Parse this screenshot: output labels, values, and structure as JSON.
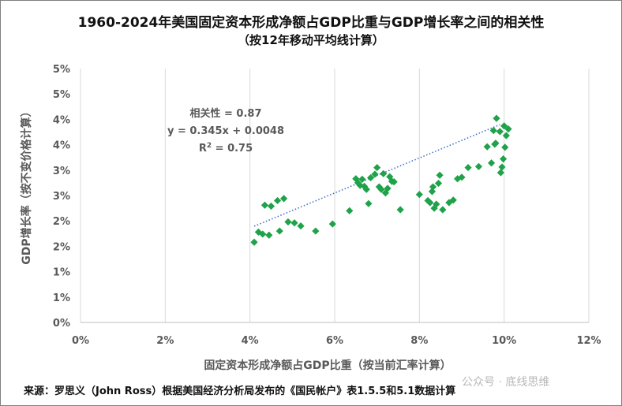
{
  "title": "1960-2024年美国固定资本形成净额占GDP比重与GDP增长率之间的相关性",
  "subtitle": "（按12年移动平均线计算）",
  "footer": "来源：罗思义（John Ross）根据美国经济分析局发布的《国民帐户》表1.5.5和5.1数据计算",
  "watermark": "公众号 · 底线思维",
  "colors": {
    "marker": "#1fa24a",
    "trendline": "#4472c4",
    "gridline": "#d9d9d9",
    "axis_text": "#595959"
  },
  "chart_data": {
    "type": "scatter",
    "xlabel": "固定资本形成净额占GDP比重（按当前汇率计算）",
    "ylabel": "GDP增长率（按不变价格计算）",
    "xlim": [
      0,
      0.12
    ],
    "ylim": [
      0,
      0.05
    ],
    "x_ticks": [
      0,
      0.02,
      0.04,
      0.06,
      0.08,
      0.1,
      0.12
    ],
    "x_tick_labels": [
      "0%",
      "2%",
      "4%",
      "6%",
      "8%",
      "10%",
      "12%"
    ],
    "y_ticks": [
      0,
      0.005,
      0.01,
      0.015,
      0.02,
      0.025,
      0.03,
      0.035,
      0.04,
      0.045,
      0.05
    ],
    "y_tick_labels": [
      "0%",
      "1%",
      "1%",
      "2%",
      "2%",
      "3%",
      "3%",
      "4%",
      "4%",
      "5%",
      "5%"
    ],
    "grid": "vertical",
    "annotations": [
      "相关性 = 0.87",
      "y = 0.345x + 0.0048"
    ],
    "r2_label": {
      "base": "R",
      "sup": "2",
      "rest": " = 0.75"
    },
    "trendline": {
      "slope": 0.345,
      "intercept": 0.0048,
      "x_range": [
        0.041,
        0.099
      ]
    },
    "points": [
      [
        0.041,
        0.0158
      ],
      [
        0.042,
        0.0178
      ],
      [
        0.043,
        0.0174
      ],
      [
        0.0435,
        0.0231
      ],
      [
        0.0445,
        0.0172
      ],
      [
        0.045,
        0.0229
      ],
      [
        0.0465,
        0.024
      ],
      [
        0.047,
        0.018
      ],
      [
        0.048,
        0.0244
      ],
      [
        0.049,
        0.0198
      ],
      [
        0.0505,
        0.0196
      ],
      [
        0.052,
        0.019
      ],
      [
        0.0555,
        0.018
      ],
      [
        0.0595,
        0.0194
      ],
      [
        0.0635,
        0.022
      ],
      [
        0.065,
        0.0283
      ],
      [
        0.0655,
        0.0275
      ],
      [
        0.066,
        0.027
      ],
      [
        0.0665,
        0.0282
      ],
      [
        0.067,
        0.0268
      ],
      [
        0.0675,
        0.0262
      ],
      [
        0.068,
        0.0234
      ],
      [
        0.0685,
        0.0285
      ],
      [
        0.0695,
        0.0292
      ],
      [
        0.07,
        0.0305
      ],
      [
        0.0705,
        0.0267
      ],
      [
        0.071,
        0.0262
      ],
      [
        0.0715,
        0.0293
      ],
      [
        0.072,
        0.0255
      ],
      [
        0.0725,
        0.0264
      ],
      [
        0.073,
        0.0287
      ],
      [
        0.0735,
        0.0278
      ],
      [
        0.074,
        0.0277
      ],
      [
        0.0755,
        0.0222
      ],
      [
        0.08,
        0.0252
      ],
      [
        0.082,
        0.024
      ],
      [
        0.0825,
        0.0236
      ],
      [
        0.083,
        0.0258
      ],
      [
        0.0832,
        0.0267
      ],
      [
        0.0835,
        0.0225
      ],
      [
        0.084,
        0.0233
      ],
      [
        0.0845,
        0.0274
      ],
      [
        0.0848,
        0.029
      ],
      [
        0.0855,
        0.0222
      ],
      [
        0.087,
        0.0236
      ],
      [
        0.088,
        0.0241
      ],
      [
        0.089,
        0.0283
      ],
      [
        0.09,
        0.0286
      ],
      [
        0.0915,
        0.0305
      ],
      [
        0.094,
        0.0307
      ],
      [
        0.096,
        0.0346
      ],
      [
        0.097,
        0.0314
      ],
      [
        0.0975,
        0.0378
      ],
      [
        0.0978,
        0.0351
      ],
      [
        0.098,
        0.0353
      ],
      [
        0.0982,
        0.0402
      ],
      [
        0.099,
        0.0376
      ],
      [
        0.0992,
        0.0295
      ],
      [
        0.0995,
        0.0306
      ],
      [
        0.0998,
        0.0322
      ],
      [
        0.1,
        0.0387
      ],
      [
        0.1002,
        0.0345
      ],
      [
        0.1005,
        0.0368
      ],
      [
        0.101,
        0.0381
      ]
    ]
  }
}
